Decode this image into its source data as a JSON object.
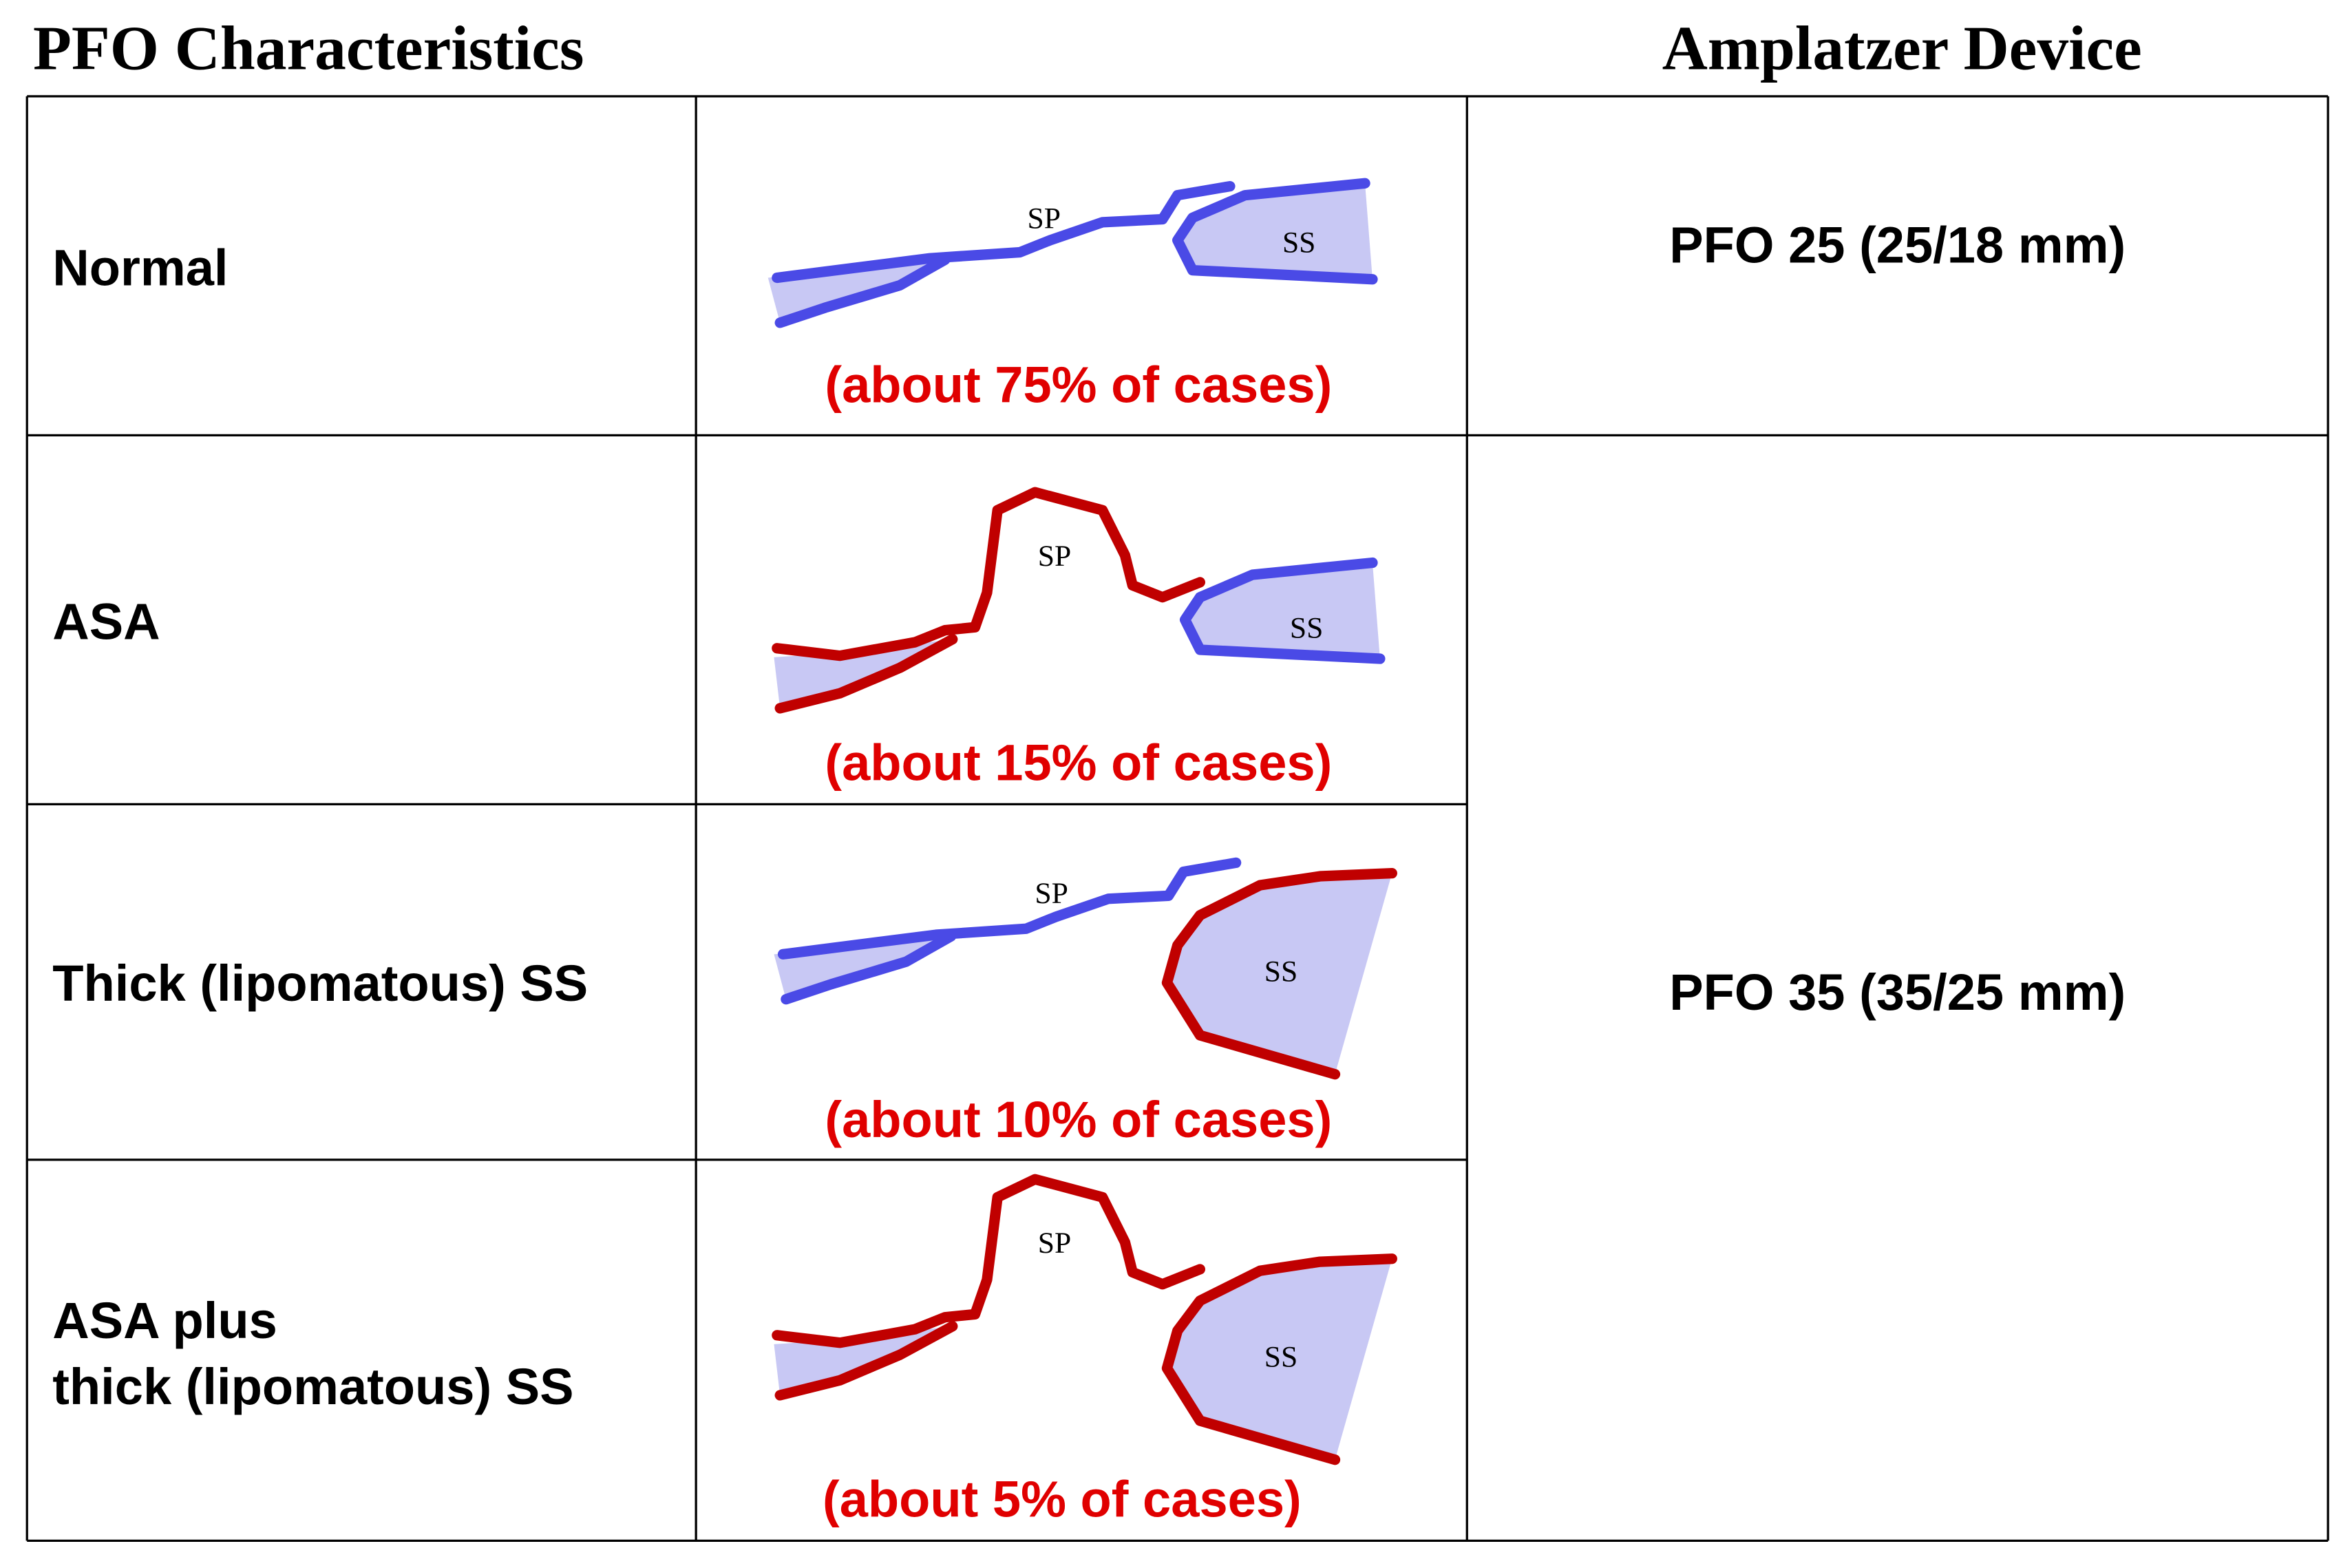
{
  "header": {
    "left": "PFO Characteristics",
    "right": "Amplatzer Device"
  },
  "rows": [
    {
      "label": "Normal",
      "sp": "SP",
      "ss": "SS",
      "share": "(about 75% of cases)"
    },
    {
      "label": "ASA",
      "sp": "SP",
      "ss": "SS",
      "share": "(about 15% of cases)"
    },
    {
      "label": "Thick (lipomatous) SS",
      "sp": "SP",
      "ss": "SS",
      "share": "(about 10% of cases)"
    },
    {
      "label_lines": [
        "ASA plus",
        "thick (lipomatous) SS"
      ],
      "sp": "SP",
      "ss": "SS",
      "share": "(about 5% of cases)"
    }
  ],
  "devices": [
    "PFO 25 (25/18 mm)",
    "PFO 35 (35/25 mm)"
  ]
}
